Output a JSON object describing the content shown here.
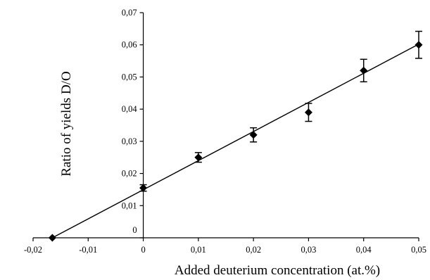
{
  "chart_data": {
    "type": "scatter",
    "title": "",
    "xlabel": "Added deuterium concentration (at.%)",
    "ylabel": "Ratio of yields D/O",
    "xlim": [
      -0.02,
      0.05
    ],
    "ylim": [
      0,
      0.07
    ],
    "x_ticks": [
      -0.02,
      -0.01,
      0,
      0.01,
      0.02,
      0.03,
      0.04,
      0.05
    ],
    "x_tick_labels": [
      "-0,02",
      "-0,01",
      "0",
      "0,01",
      "0,02",
      "0,03",
      "0,04",
      "0,05"
    ],
    "y_ticks": [
      0,
      0.01,
      0.02,
      0.03,
      0.04,
      0.05,
      0.06,
      0.07
    ],
    "y_tick_labels": [
      "0",
      "0,01",
      "0,02",
      "0,03",
      "0,04",
      "0,05",
      "0,06",
      "0,07"
    ],
    "grid": false,
    "legend": "none",
    "series": [
      {
        "marker": "diamond",
        "color": "#000000",
        "points": [
          {
            "x": -0.0165,
            "y": 0.0,
            "yerr": null
          },
          {
            "x": 0.0,
            "y": 0.0155,
            "yerr": 0.001
          },
          {
            "x": 0.01,
            "y": 0.025,
            "yerr": 0.0015
          },
          {
            "x": 0.02,
            "y": 0.032,
            "yerr": 0.0022
          },
          {
            "x": 0.03,
            "y": 0.039,
            "yerr": 0.0028
          },
          {
            "x": 0.04,
            "y": 0.052,
            "yerr": 0.0035
          },
          {
            "x": 0.05,
            "y": 0.06,
            "yerr": 0.0042
          }
        ]
      }
    ],
    "fit_line": {
      "x": [
        -0.0165,
        0.05
      ],
      "y": [
        0.0,
        0.0602
      ]
    }
  }
}
